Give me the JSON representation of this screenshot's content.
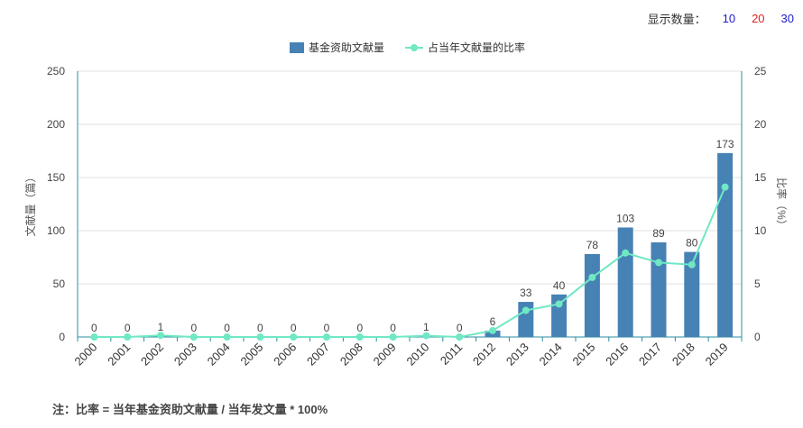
{
  "display_count": {
    "label": "显示数量：",
    "options": [
      {
        "label": "10",
        "color": "#1a1acc"
      },
      {
        "label": "20",
        "color": "#e02020"
      },
      {
        "label": "30",
        "color": "#1a1acc"
      }
    ]
  },
  "chart_data": {
    "type": "bar+line",
    "categories": [
      "2000",
      "2001",
      "2002",
      "2003",
      "2004",
      "2005",
      "2006",
      "2007",
      "2008",
      "2009",
      "2010",
      "2011",
      "2012",
      "2013",
      "2014",
      "2015",
      "2016",
      "2017",
      "2018",
      "2019"
    ],
    "series": [
      {
        "name": "基金资助文献量",
        "kind": "bar",
        "axis": "left",
        "color": "#4682b4",
        "values": [
          0,
          0,
          1,
          0,
          0,
          0,
          0,
          0,
          0,
          0,
          1,
          0,
          6,
          33,
          40,
          78,
          103,
          89,
          80,
          173
        ]
      },
      {
        "name": "占当年文献量的比率",
        "kind": "line",
        "axis": "right",
        "color": "#6fe8c4",
        "values": [
          0.0,
          0.0,
          0.15,
          0.0,
          0.0,
          0.0,
          0.0,
          0.0,
          0.0,
          0.0,
          0.12,
          0.0,
          0.6,
          2.5,
          3.1,
          5.6,
          7.9,
          7.0,
          6.8,
          14.1
        ]
      }
    ],
    "yleft": {
      "label": "文献量（篇）",
      "ylim": [
        0,
        250
      ],
      "ticks": [
        0,
        50,
        100,
        150,
        200,
        250
      ]
    },
    "yright": {
      "label": "比率（%）",
      "ylim": [
        0,
        25
      ],
      "ticks": [
        0,
        5,
        10,
        15,
        20,
        25
      ]
    },
    "grid": true,
    "legend_position": "top-center"
  },
  "note": "注：比率 = 当年基金资助文献量 / 当年发文量 * 100%"
}
